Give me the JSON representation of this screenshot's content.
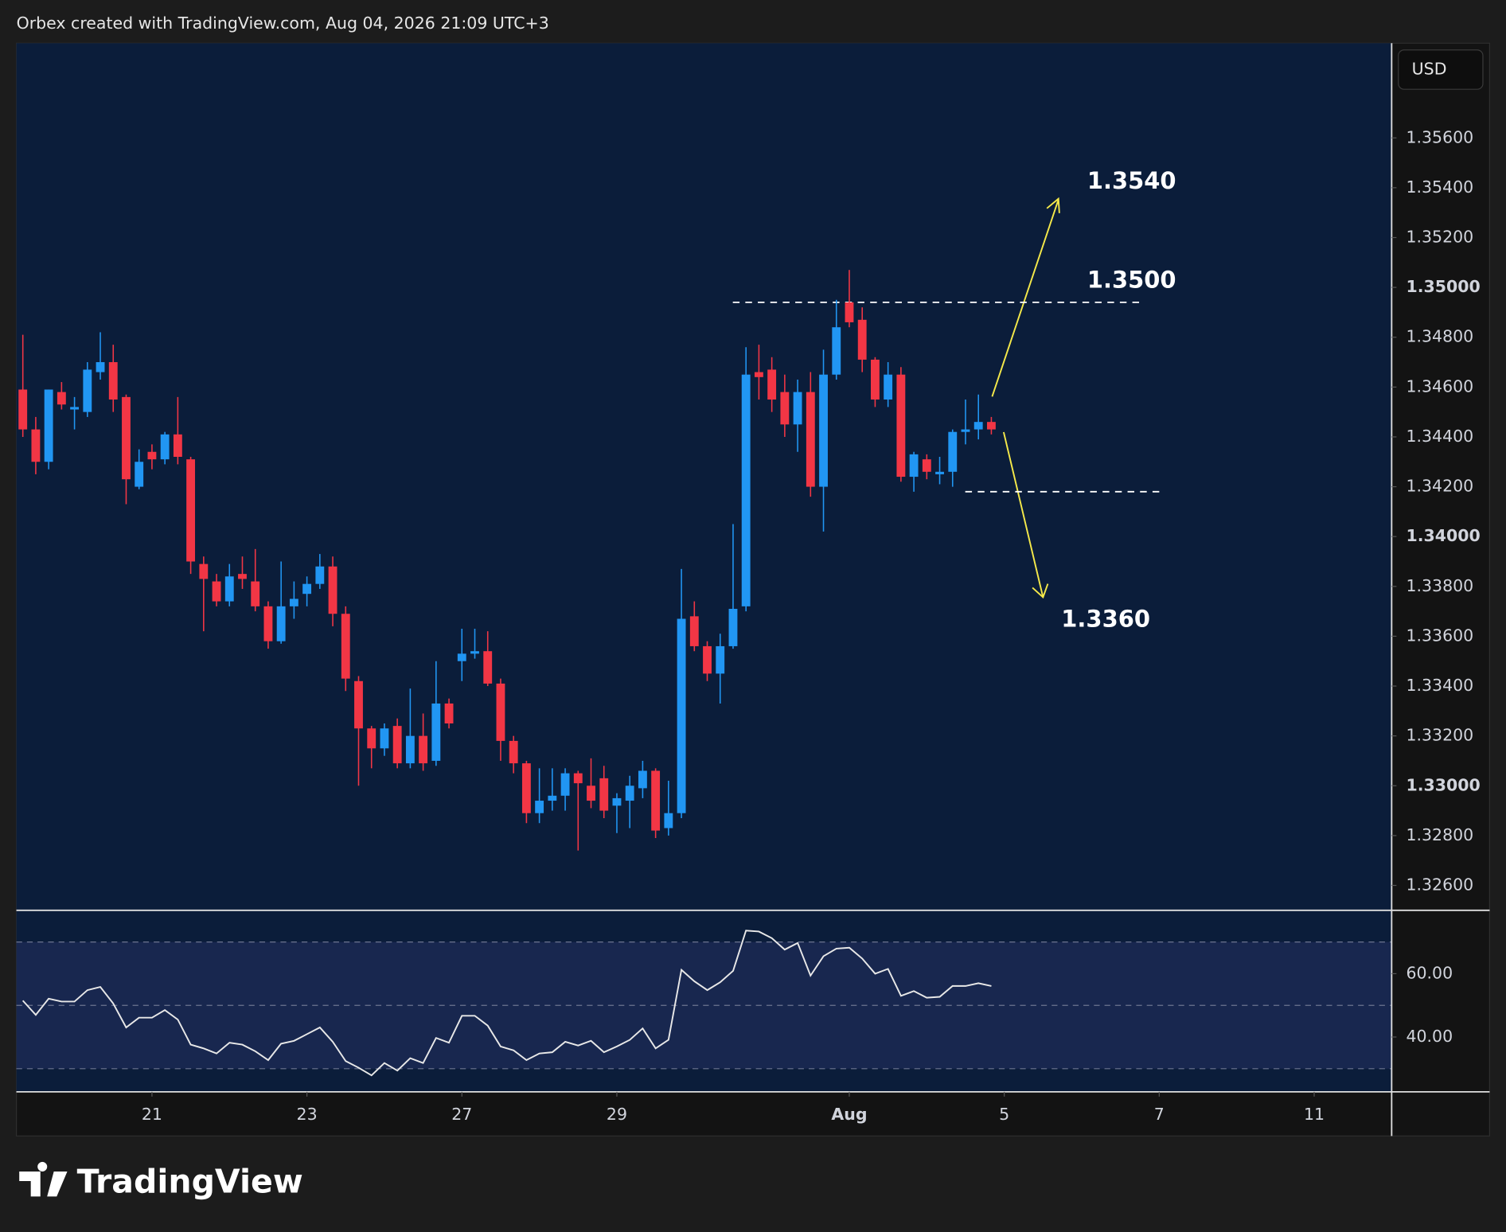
{
  "header": {
    "credit": "Orbex created with TradingView.com, Aug 04, 2026 21:09 UTC+3"
  },
  "footer": {
    "brand": "TradingView"
  },
  "chart_data": [
    {
      "type": "candlestick",
      "categories": [
        null,
        null,
        null,
        null,
        null,
        null,
        null,
        null,
        null,
        null,
        null,
        null,
        null,
        null,
        null,
        null,
        null,
        null,
        null,
        null,
        null,
        null,
        null,
        null,
        null,
        null,
        null,
        null,
        null,
        null,
        null,
        null,
        null,
        null,
        null,
        null,
        null,
        null,
        null,
        null,
        null,
        null,
        null,
        null,
        null,
        null,
        null,
        null,
        null,
        null,
        null,
        null,
        null,
        null,
        null,
        null,
        null,
        null,
        null,
        null,
        null,
        null,
        null,
        null,
        null,
        null,
        null,
        null,
        null,
        null,
        null,
        null,
        null,
        null,
        null,
        null
      ],
      "open": [
        1.3459,
        1.3443,
        1.343,
        1.3458,
        1.3451,
        1.345,
        1.3466,
        1.347,
        1.3456,
        1.342,
        1.3434,
        1.3431,
        1.3441,
        1.3431,
        1.3389,
        1.3382,
        1.3374,
        1.3385,
        1.3382,
        1.3372,
        1.3358,
        1.3372,
        1.3377,
        1.3381,
        1.3388,
        1.3369,
        1.3342,
        1.3323,
        1.3315,
        1.3324,
        1.3309,
        1.332,
        1.331,
        1.3333,
        1.335,
        1.3353,
        1.3354,
        1.3341,
        1.3318,
        1.3309,
        1.3289,
        1.3294,
        1.3296,
        1.3305,
        1.33,
        1.3303,
        1.3292,
        1.3294,
        1.3299,
        1.3306,
        1.3283,
        1.3289,
        1.3368,
        1.3356,
        1.3345,
        1.3356,
        1.3372,
        1.3466,
        1.3467,
        1.3458,
        1.3445,
        1.3458,
        1.342,
        1.3465,
        1.3494,
        1.3487,
        1.3471,
        1.3455,
        1.3465,
        1.3424,
        1.3431,
        1.3425,
        1.3426,
        1.3442,
        1.3443,
        1.3446
      ],
      "high": [
        1.3481,
        1.3448,
        1.3459,
        1.3462,
        1.3456,
        1.347,
        1.3482,
        1.3477,
        1.3457,
        1.3435,
        1.3437,
        1.3442,
        1.3456,
        1.3432,
        1.3392,
        1.3385,
        1.3389,
        1.3392,
        1.3395,
        1.3374,
        1.339,
        1.3382,
        1.3384,
        1.3393,
        1.3392,
        1.3372,
        1.3344,
        1.3324,
        1.3325,
        1.3327,
        1.3339,
        1.3329,
        1.335,
        1.3335,
        1.3363,
        1.3363,
        1.3362,
        1.3343,
        1.332,
        1.331,
        1.3307,
        1.3307,
        1.3307,
        1.3306,
        1.3311,
        1.3308,
        1.3297,
        1.3304,
        1.331,
        1.3307,
        1.3302,
        1.3387,
        1.3374,
        1.3358,
        1.3361,
        1.3405,
        1.3476,
        1.3477,
        1.3472,
        1.3465,
        1.3463,
        1.3466,
        1.3475,
        1.3495,
        1.3507,
        1.3492,
        1.3472,
        1.347,
        1.3468,
        1.3434,
        1.3433,
        1.3432,
        1.3443,
        1.3455,
        1.3457,
        1.3448
      ],
      "low": [
        1.344,
        1.3425,
        1.3427,
        1.3451,
        1.3443,
        1.3448,
        1.3463,
        1.345,
        1.3413,
        1.3419,
        1.3427,
        1.3429,
        1.3429,
        1.3385,
        1.3362,
        1.3372,
        1.3372,
        1.3379,
        1.337,
        1.3355,
        1.3357,
        1.3367,
        1.3372,
        1.3379,
        1.3364,
        1.3338,
        1.33,
        1.3307,
        1.3312,
        1.3307,
        1.3307,
        1.3306,
        1.3308,
        1.3323,
        1.3342,
        1.3351,
        1.334,
        1.331,
        1.3305,
        1.3285,
        1.3285,
        1.329,
        1.329,
        1.3274,
        1.3291,
        1.3287,
        1.3281,
        1.3283,
        1.3295,
        1.3279,
        1.328,
        1.3287,
        1.3354,
        1.3342,
        1.3333,
        1.3355,
        1.337,
        1.3455,
        1.345,
        1.344,
        1.3434,
        1.3416,
        1.3402,
        1.3463,
        1.3484,
        1.3466,
        1.3452,
        1.3452,
        1.3422,
        1.3418,
        1.3423,
        1.3421,
        1.342,
        1.3437,
        1.3439,
        1.3441
      ],
      "close": [
        1.3443,
        1.343,
        1.3459,
        1.3453,
        1.3452,
        1.3467,
        1.347,
        1.3455,
        1.3423,
        1.343,
        1.3431,
        1.3441,
        1.3432,
        1.339,
        1.3383,
        1.3374,
        1.3384,
        1.3383,
        1.3372,
        1.3358,
        1.3372,
        1.3375,
        1.3381,
        1.3388,
        1.3369,
        1.3343,
        1.3323,
        1.3315,
        1.3323,
        1.3309,
        1.332,
        1.3309,
        1.3333,
        1.3325,
        1.3353,
        1.3354,
        1.3341,
        1.3318,
        1.3309,
        1.3289,
        1.3294,
        1.3296,
        1.3305,
        1.3301,
        1.3294,
        1.329,
        1.3295,
        1.33,
        1.3306,
        1.3282,
        1.3289,
        1.3367,
        1.3356,
        1.3345,
        1.3356,
        1.3371,
        1.3465,
        1.3464,
        1.3455,
        1.3445,
        1.3458,
        1.342,
        1.3465,
        1.3484,
        1.3486,
        1.3471,
        1.3455,
        1.3465,
        1.3424,
        1.3433,
        1.3426,
        1.3426,
        1.3442,
        1.3443,
        1.3446,
        1.3443
      ],
      "up_color": "#2196f3",
      "down_color": "#f23645",
      "xlim": [
        -0.5,
        106
      ],
      "xticks": [
        {
          "value": 10,
          "label": "21"
        },
        {
          "value": 22,
          "label": "23"
        },
        {
          "value": 34,
          "label": "27"
        },
        {
          "value": 46,
          "label": "29"
        },
        {
          "value": 64,
          "label": "Aug"
        },
        {
          "value": 76,
          "label": "5"
        },
        {
          "value": 88,
          "label": "7"
        },
        {
          "value": 100,
          "label": "11"
        }
      ],
      "ylim": [
        1.325,
        1.3598
      ],
      "yticks": [
        {
          "value": 1.326,
          "label": "1.32600"
        },
        {
          "value": 1.328,
          "label": "1.32800"
        },
        {
          "value": 1.33,
          "label": "1.33000"
        },
        {
          "value": 1.332,
          "label": "1.33200"
        },
        {
          "value": 1.334,
          "label": "1.33400"
        },
        {
          "value": 1.336,
          "label": "1.33600"
        },
        {
          "value": 1.338,
          "label": "1.33800"
        },
        {
          "value": 1.34,
          "label": "1.34000"
        },
        {
          "value": 1.342,
          "label": "1.34200"
        },
        {
          "value": 1.344,
          "label": "1.34400"
        },
        {
          "value": 1.346,
          "label": "1.34600"
        },
        {
          "value": 1.348,
          "label": "1.34800"
        },
        {
          "value": 1.35,
          "label": "1.35000"
        },
        {
          "value": 1.352,
          "label": "1.35200"
        },
        {
          "value": 1.354,
          "label": "1.35400"
        },
        {
          "value": 1.356,
          "label": "1.35600"
        }
      ],
      "currency": "USD",
      "hlines": [
        1.3494,
        1.3418
      ],
      "annotations": [
        "1.3540",
        "1.3500",
        "1.3360"
      ]
    },
    {
      "type": "line",
      "values": [
        51.5,
        47.0,
        52.1,
        51.2,
        51.2,
        54.8,
        55.8,
        50.6,
        43.0,
        46.1,
        46.1,
        48.5,
        45.5,
        37.6,
        36.4,
        34.8,
        38.2,
        37.6,
        35.5,
        32.7,
        37.9,
        38.8,
        40.9,
        43.0,
        38.5,
        32.4,
        30.3,
        27.9,
        31.8,
        29.4,
        33.3,
        31.8,
        39.7,
        38.2,
        46.7,
        46.7,
        43.6,
        37.0,
        35.8,
        32.7,
        34.8,
        35.2,
        38.5,
        37.3,
        38.8,
        35.2,
        37.0,
        39.1,
        42.7,
        36.4,
        39.1,
        61.2,
        57.6,
        54.8,
        57.3,
        60.9,
        73.6,
        73.3,
        71.2,
        67.6,
        69.7,
        59.4,
        65.5,
        67.9,
        68.2,
        64.8,
        60.0,
        61.5,
        53.0,
        54.5,
        52.4,
        52.7,
        56.1,
        56.1,
        57.0,
        56.1
      ],
      "color": "#e8e8e8",
      "ylim": [
        22.7,
        79.4
      ],
      "yticks": [
        {
          "value": 40,
          "label": "40.00"
        },
        {
          "value": 60,
          "label": "60.00"
        }
      ],
      "levels": [
        70,
        50,
        30
      ],
      "band": [
        30,
        70
      ]
    }
  ]
}
